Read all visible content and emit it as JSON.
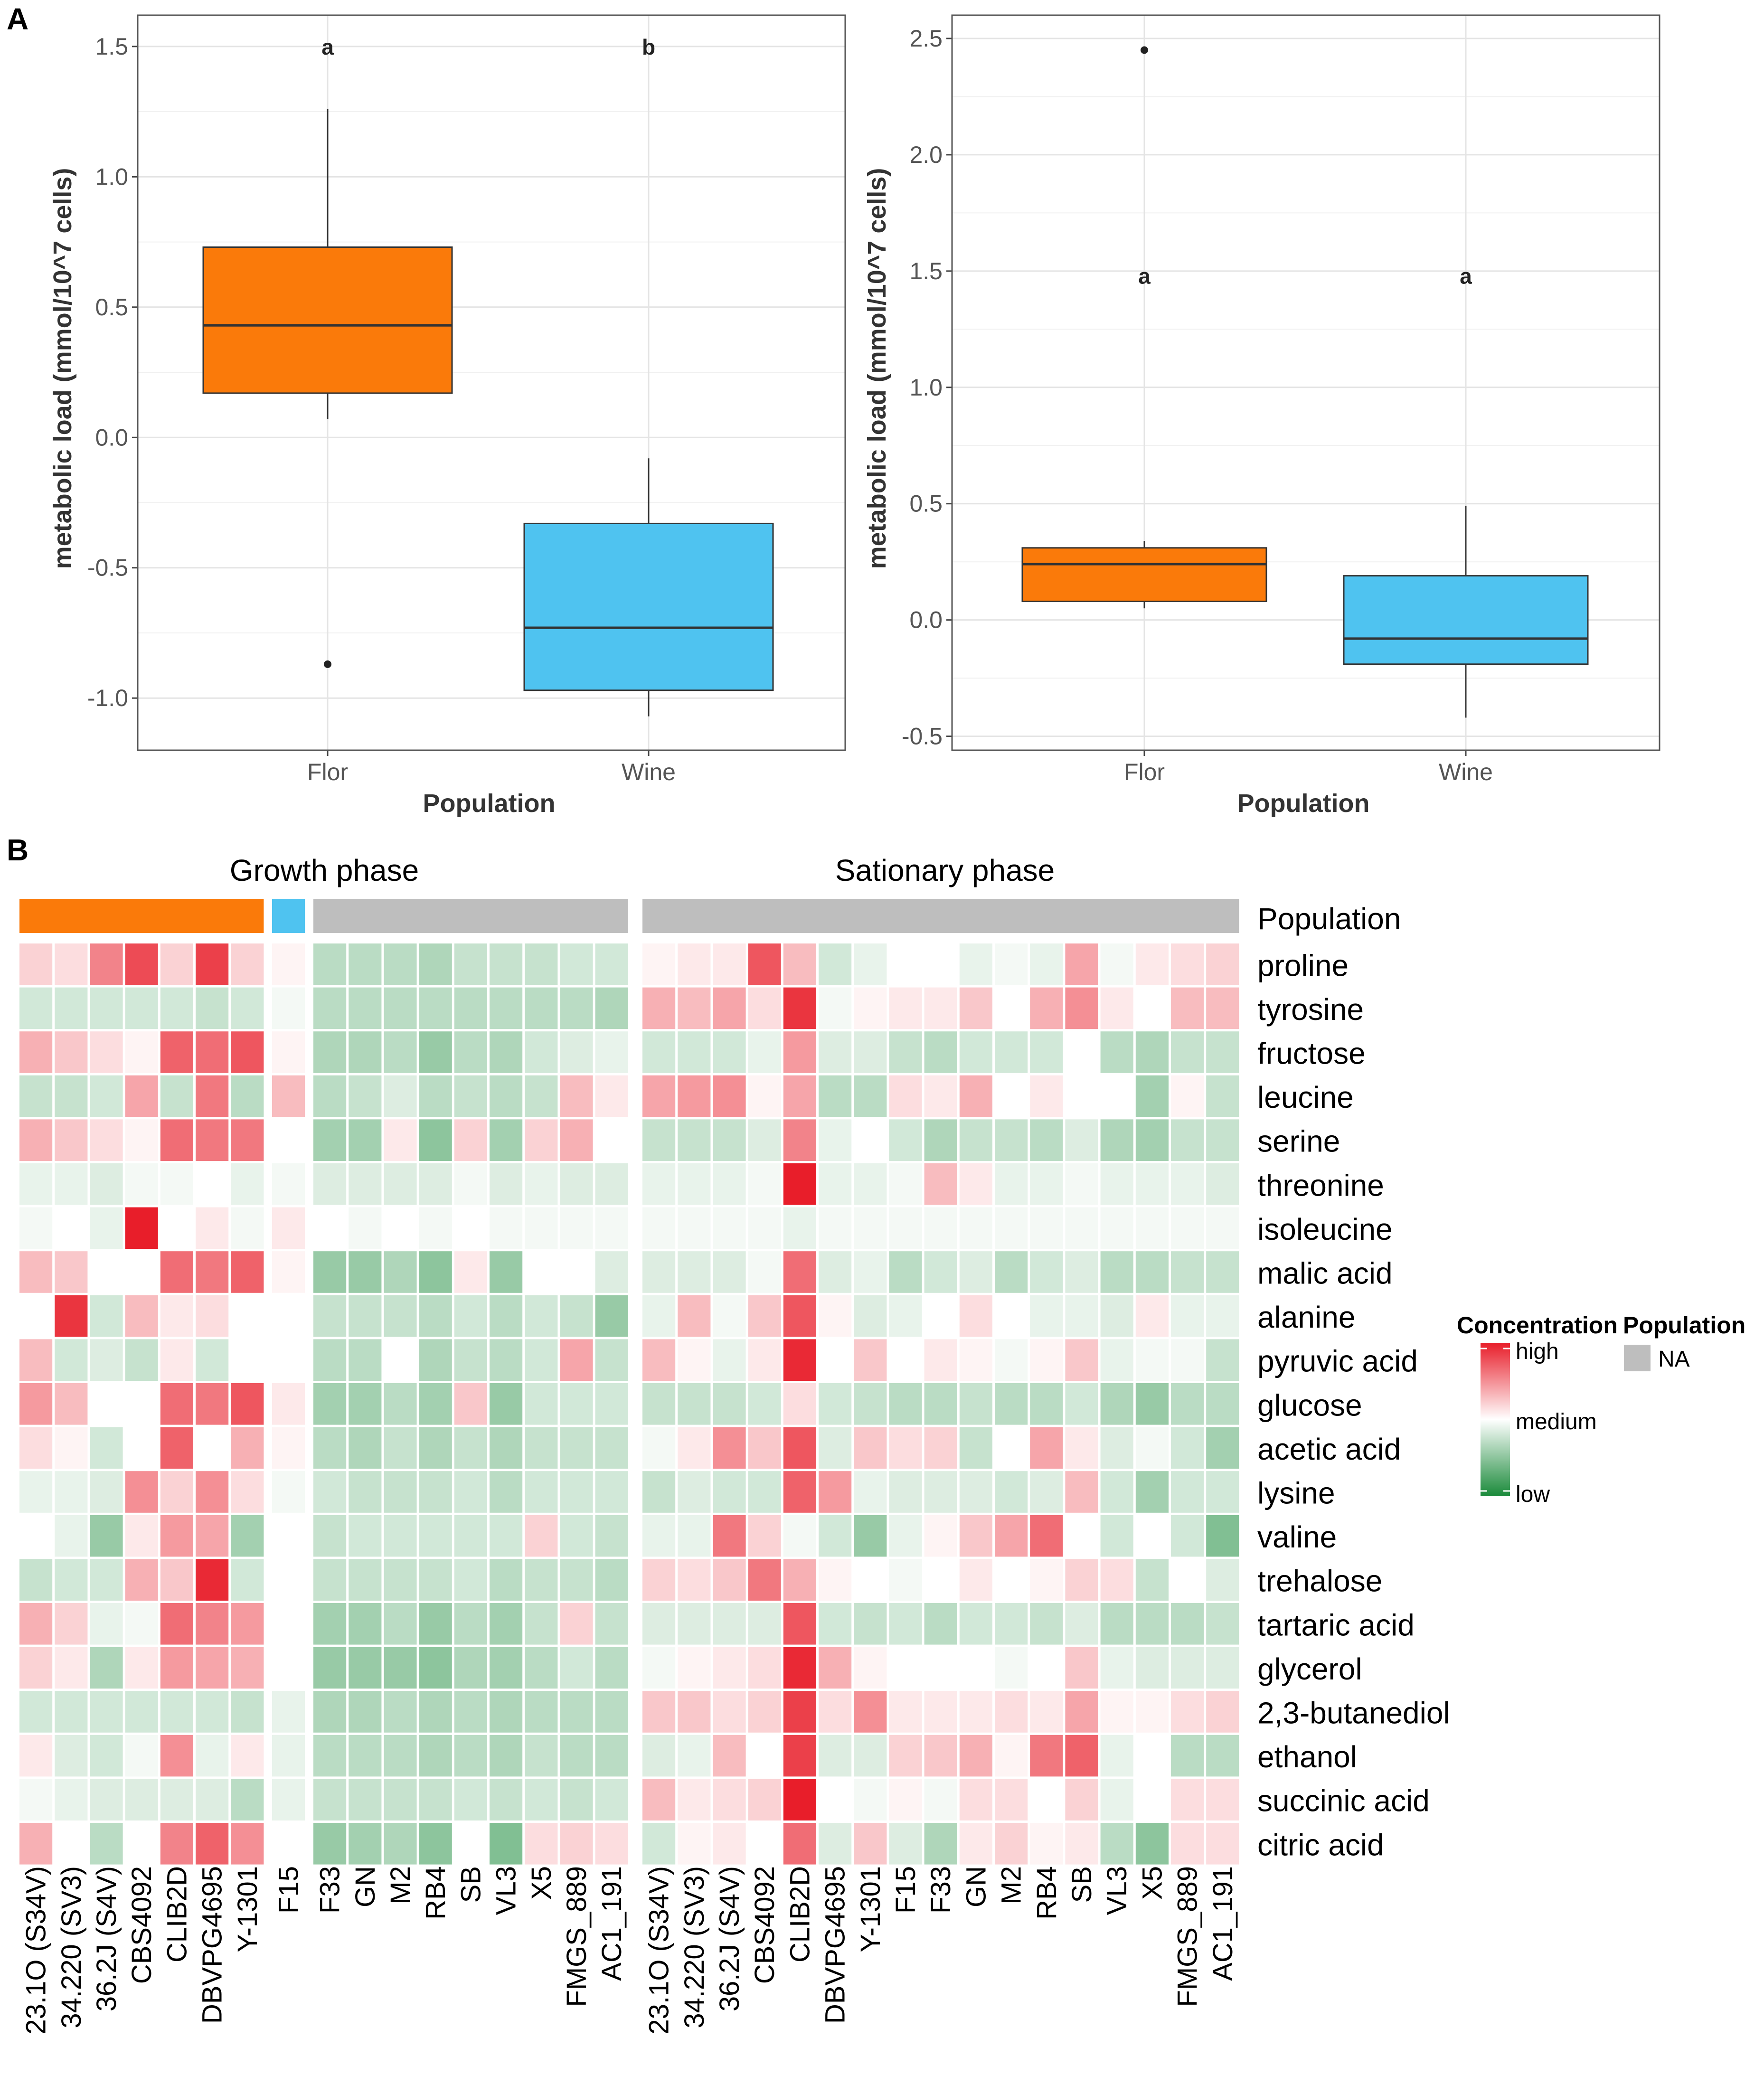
{
  "panels": {
    "a_label": "A",
    "b_label": "B"
  },
  "chart_data": [
    {
      "type": "box",
      "title": "",
      "xlabel": "Population",
      "ylabel": "metabolic load (mmol/10^7 cells)",
      "ylim": [
        -1.2,
        1.62
      ],
      "yticks": [
        -1.0,
        -0.5,
        0.0,
        0.5,
        1.0,
        1.5
      ],
      "ytick_labels": [
        "-1.0",
        "-0.5",
        "0.0",
        "0.5",
        "1.0",
        "1.5"
      ],
      "categories": [
        "Flor",
        "Wine"
      ],
      "boxes": [
        {
          "name": "Flor",
          "color": "#FA7A0A",
          "whisker_low": 0.07,
          "q1": 0.17,
          "median": 0.43,
          "q3": 0.73,
          "whisker_high": 1.26,
          "outliers": [
            -0.87
          ],
          "letter": "a",
          "letter_y": 1.5
        },
        {
          "name": "Wine",
          "color": "#4FC3F0",
          "whisker_low": -1.07,
          "q1": -0.97,
          "median": -0.73,
          "q3": -0.33,
          "whisker_high": -0.08,
          "outliers": [],
          "letter": "b",
          "letter_y": 1.5
        }
      ]
    },
    {
      "type": "box",
      "title": "",
      "xlabel": "Population",
      "ylabel": "metabolic load (mmol/10^7 cells)",
      "ylim": [
        -0.56,
        2.6
      ],
      "yticks": [
        -0.5,
        0.0,
        0.5,
        1.0,
        1.5,
        2.0,
        2.5
      ],
      "ytick_labels": [
        "-0.5",
        "0.0",
        "0.5",
        "1.0",
        "1.5",
        "2.0",
        "2.5"
      ],
      "categories": [
        "Flor",
        "Wine"
      ],
      "boxes": [
        {
          "name": "Flor",
          "color": "#FA7A0A",
          "whisker_low": 0.05,
          "q1": 0.08,
          "median": 0.24,
          "q3": 0.31,
          "whisker_high": 0.34,
          "outliers": [
            2.45
          ],
          "letter": "a",
          "letter_y": 1.48
        },
        {
          "name": "Wine",
          "color": "#4FC3F0",
          "whisker_low": -0.42,
          "q1": -0.19,
          "median": -0.08,
          "q3": 0.19,
          "whisker_high": 0.49,
          "outliers": [],
          "letter": "a",
          "letter_y": 1.48
        }
      ]
    },
    {
      "type": "heatmap",
      "title": "",
      "scale": "relative concentration, -2 (low, green) to +2 (high, red)",
      "rows": [
        "proline",
        "tyrosine",
        "fructose",
        "leucine",
        "serine",
        "threonine",
        "isoleucine",
        "malic acid",
        "alanine",
        "pyruvic acid",
        "glucose",
        "acetic acid",
        "lysine",
        "valine",
        "trehalose",
        "tartaric acid",
        "glycerol",
        "2,3-butanediol",
        "ethanol",
        "succinic acid",
        "citric acid"
      ],
      "growth_phase": {
        "title": "Growth phase",
        "columns": [
          "23.1O (S34V)",
          "34.220 (SV3)",
          "36.2J (S4V)",
          "CBS4092",
          "CLIB2D",
          "DBVPG4695",
          "Y-1301",
          "F15",
          "F33",
          "GN",
          "M2",
          "RB4",
          "SB",
          "VL3",
          "X5",
          "FMGS_889",
          "AC1_191"
        ],
        "population_bar": [
          {
            "group": "Flor",
            "span": 7,
            "color": "#FA7A0A"
          },
          {
            "group": "Wine",
            "span": 1,
            "color": "#4FC3F0"
          },
          {
            "group": "NA",
            "span": 9,
            "color": "#BEBEBE"
          }
        ],
        "values": [
          [
            0.4,
            0.3,
            1.1,
            1.6,
            0.4,
            1.7,
            0.4,
            0.1,
            -0.6,
            -0.6,
            -0.6,
            -0.7,
            -0.5,
            -0.5,
            -0.5,
            -0.4,
            -0.4
          ],
          [
            -0.4,
            -0.4,
            -0.4,
            -0.4,
            -0.4,
            -0.5,
            -0.4,
            -0.1,
            -0.6,
            -0.6,
            -0.6,
            -0.6,
            -0.6,
            -0.6,
            -0.6,
            -0.6,
            -0.7
          ],
          [
            0.7,
            0.5,
            0.3,
            0.1,
            1.4,
            1.3,
            1.5,
            0.1,
            -0.7,
            -0.7,
            -0.6,
            -0.9,
            -0.6,
            -0.7,
            -0.4,
            -0.3,
            -0.2
          ],
          [
            -0.5,
            -0.5,
            -0.4,
            0.8,
            -0.5,
            1.2,
            -0.6,
            0.6,
            -0.6,
            -0.5,
            -0.3,
            -0.6,
            -0.5,
            -0.6,
            -0.5,
            0.6,
            0.2
          ],
          [
            0.7,
            0.5,
            0.3,
            0.1,
            1.3,
            1.2,
            1.2,
            0.0,
            -0.8,
            -0.8,
            0.2,
            -1.0,
            0.4,
            -0.8,
            0.4,
            0.7,
            0.0
          ],
          [
            -0.2,
            -0.2,
            -0.3,
            -0.1,
            -0.1,
            0.0,
            -0.2,
            -0.1,
            -0.3,
            -0.3,
            -0.3,
            -0.3,
            -0.1,
            -0.3,
            -0.2,
            -0.3,
            -0.3
          ],
          [
            -0.1,
            0.0,
            -0.2,
            2.0,
            0.0,
            0.2,
            -0.1,
            0.2,
            0.0,
            -0.1,
            0.0,
            -0.1,
            0.0,
            -0.1,
            -0.1,
            -0.1,
            -0.1
          ],
          [
            0.6,
            0.5,
            0.0,
            0.0,
            1.3,
            1.2,
            1.4,
            0.1,
            -0.9,
            -0.9,
            -0.7,
            -1.0,
            0.2,
            -0.9,
            0.0,
            0.0,
            -0.3
          ],
          [
            0.0,
            1.8,
            -0.4,
            0.6,
            0.2,
            0.3,
            0.0,
            0.0,
            -0.5,
            -0.5,
            -0.5,
            -0.6,
            -0.4,
            -0.6,
            -0.4,
            -0.5,
            -0.9
          ],
          [
            0.6,
            -0.4,
            -0.3,
            -0.5,
            0.2,
            -0.4,
            0.0,
            0.0,
            -0.6,
            -0.6,
            0.0,
            -0.7,
            -0.5,
            -0.6,
            -0.4,
            0.8,
            -0.5
          ],
          [
            0.9,
            0.6,
            0.0,
            0.0,
            1.3,
            1.2,
            1.5,
            0.2,
            -0.8,
            -0.8,
            -0.6,
            -0.8,
            0.5,
            -0.9,
            -0.4,
            -0.4,
            -0.4
          ],
          [
            0.3,
            0.1,
            -0.4,
            0.0,
            1.4,
            0.0,
            0.7,
            0.1,
            -0.6,
            -0.7,
            -0.5,
            -0.7,
            -0.5,
            -0.7,
            -0.5,
            -0.5,
            -0.5
          ],
          [
            -0.2,
            -0.2,
            -0.3,
            1.0,
            0.4,
            1.0,
            0.3,
            -0.1,
            -0.4,
            -0.5,
            -0.5,
            -0.5,
            -0.4,
            -0.6,
            -0.4,
            -0.4,
            -0.4
          ],
          [
            0.0,
            -0.2,
            -0.9,
            0.2,
            0.9,
            0.8,
            -0.8,
            0.0,
            -0.5,
            -0.4,
            -0.4,
            -0.4,
            -0.4,
            -0.4,
            0.4,
            -0.4,
            -0.5
          ],
          [
            -0.5,
            -0.4,
            -0.4,
            0.7,
            0.5,
            1.9,
            -0.4,
            0.0,
            -0.5,
            -0.5,
            -0.5,
            -0.5,
            -0.4,
            -0.6,
            -0.5,
            -0.5,
            -0.6
          ],
          [
            0.7,
            0.4,
            -0.2,
            -0.1,
            1.3,
            1.1,
            0.9,
            0.0,
            -0.8,
            -0.8,
            -0.6,
            -0.9,
            -0.6,
            -0.8,
            -0.5,
            0.4,
            -0.5
          ],
          [
            0.4,
            0.2,
            -0.7,
            0.2,
            0.9,
            0.8,
            0.7,
            0.0,
            -0.9,
            -0.9,
            -0.9,
            -1.0,
            -0.7,
            -0.8,
            -0.6,
            -0.4,
            -0.6
          ],
          [
            -0.4,
            -0.4,
            -0.4,
            -0.4,
            -0.4,
            -0.4,
            -0.5,
            -0.2,
            -0.7,
            -0.7,
            -0.6,
            -0.7,
            -0.6,
            -0.7,
            -0.6,
            -0.6,
            -0.6
          ],
          [
            0.2,
            -0.3,
            -0.4,
            -0.1,
            1.0,
            -0.2,
            0.2,
            -0.2,
            -0.6,
            -0.6,
            -0.6,
            -0.7,
            -0.6,
            -0.7,
            -0.5,
            -0.6,
            -0.6
          ],
          [
            -0.1,
            -0.2,
            -0.3,
            -0.3,
            -0.3,
            -0.3,
            -0.6,
            -0.2,
            -0.5,
            -0.5,
            -0.5,
            -0.5,
            -0.4,
            -0.5,
            -0.4,
            -0.5,
            -0.4
          ],
          [
            0.7,
            0.0,
            -0.6,
            0.0,
            1.1,
            1.4,
            1.0,
            0.0,
            -0.9,
            -0.8,
            -0.7,
            -1.0,
            0.0,
            -1.1,
            0.3,
            0.4,
            0.3
          ]
        ]
      },
      "stationary_phase": {
        "title": "Sationary phase",
        "columns": [
          "23.1O (S34V)",
          "34.220 (SV3)",
          "36.2J (S4V)",
          "CBS4092",
          "CLIB2D",
          "DBVPG4695",
          "Y-1301",
          "F15",
          "F33",
          "GN",
          "M2",
          "RB4",
          "SB",
          "VL3",
          "X5",
          "FMGS_889",
          "AC1_191"
        ],
        "population_bar": [
          {
            "group": "NA",
            "span": 17,
            "color": "#BEBEBE"
          }
        ],
        "values": [
          [
            0.1,
            0.2,
            0.2,
            1.5,
            0.6,
            -0.4,
            -0.2,
            0.0,
            0.0,
            -0.2,
            -0.1,
            -0.2,
            0.8,
            -0.1,
            0.2,
            0.3,
            0.4
          ],
          [
            0.7,
            0.6,
            0.8,
            0.3,
            1.8,
            -0.1,
            0.1,
            0.2,
            0.2,
            0.5,
            0.0,
            0.7,
            1.0,
            0.2,
            0.0,
            0.6,
            0.6
          ],
          [
            -0.4,
            -0.4,
            -0.4,
            -0.2,
            0.9,
            -0.3,
            -0.3,
            -0.5,
            -0.6,
            -0.4,
            -0.4,
            -0.4,
            0.0,
            -0.6,
            -0.7,
            -0.5,
            -0.5
          ],
          [
            0.8,
            0.9,
            1.0,
            0.1,
            0.8,
            -0.6,
            -0.6,
            0.3,
            0.2,
            0.7,
            0.0,
            0.2,
            0.0,
            0.0,
            -0.8,
            0.1,
            -0.5
          ],
          [
            -0.5,
            -0.5,
            -0.5,
            -0.3,
            1.1,
            -0.2,
            0.0,
            -0.4,
            -0.7,
            -0.5,
            -0.5,
            -0.6,
            -0.3,
            -0.7,
            -0.8,
            -0.5,
            -0.5
          ],
          [
            -0.2,
            -0.2,
            -0.2,
            -0.1,
            2.0,
            -0.2,
            -0.2,
            -0.1,
            0.6,
            0.2,
            -0.2,
            -0.2,
            -0.1,
            -0.2,
            -0.2,
            -0.2,
            -0.3
          ],
          [
            -0.1,
            -0.1,
            -0.1,
            -0.1,
            -0.2,
            -0.1,
            -0.1,
            -0.1,
            -0.1,
            -0.1,
            -0.1,
            -0.1,
            -0.1,
            -0.1,
            -0.1,
            -0.1,
            -0.1
          ],
          [
            -0.3,
            -0.3,
            -0.3,
            -0.1,
            1.3,
            -0.3,
            -0.2,
            -0.6,
            -0.4,
            -0.3,
            -0.6,
            -0.4,
            -0.3,
            -0.6,
            -0.6,
            -0.5,
            -0.5
          ],
          [
            -0.2,
            0.6,
            -0.1,
            0.5,
            1.5,
            0.1,
            -0.3,
            -0.2,
            0.0,
            0.3,
            0.0,
            -0.2,
            -0.2,
            -0.3,
            0.2,
            -0.2,
            -0.2
          ],
          [
            0.6,
            0.1,
            -0.2,
            0.2,
            1.9,
            0.0,
            0.5,
            0.0,
            0.2,
            0.1,
            -0.1,
            0.1,
            0.5,
            -0.2,
            -0.1,
            -0.1,
            -0.5
          ],
          [
            -0.5,
            -0.5,
            -0.5,
            -0.4,
            0.3,
            -0.4,
            -0.5,
            -0.6,
            -0.6,
            -0.5,
            -0.6,
            -0.6,
            -0.4,
            -0.7,
            -0.9,
            -0.6,
            -0.6
          ],
          [
            -0.1,
            0.2,
            1.0,
            0.5,
            1.5,
            -0.3,
            0.5,
            0.3,
            0.4,
            -0.5,
            0.0,
            0.8,
            0.2,
            -0.3,
            -0.1,
            -0.4,
            -0.8
          ],
          [
            -0.5,
            -0.3,
            -0.4,
            -0.4,
            1.4,
            0.9,
            -0.2,
            -0.3,
            -0.3,
            -0.3,
            -0.4,
            -0.3,
            0.6,
            -0.4,
            -0.8,
            -0.4,
            -0.4
          ],
          [
            -0.2,
            -0.2,
            1.2,
            0.4,
            -0.1,
            -0.4,
            -0.9,
            -0.2,
            0.1,
            0.5,
            0.8,
            1.3,
            0.0,
            -0.4,
            0.0,
            -0.4,
            -1.1
          ],
          [
            0.4,
            0.3,
            0.5,
            1.2,
            0.7,
            0.1,
            0.0,
            -0.1,
            0.0,
            0.2,
            0.0,
            0.1,
            0.4,
            0.3,
            -0.5,
            0.0,
            -0.3
          ],
          [
            -0.3,
            -0.3,
            -0.3,
            -0.3,
            1.5,
            -0.4,
            -0.5,
            -0.4,
            -0.6,
            -0.4,
            -0.4,
            -0.5,
            -0.3,
            -0.6,
            -0.6,
            -0.6,
            -0.5
          ],
          [
            -0.1,
            0.1,
            0.2,
            0.3,
            1.9,
            0.7,
            0.1,
            0.0,
            0.0,
            0.0,
            -0.1,
            0.0,
            0.5,
            -0.2,
            -0.3,
            -0.3,
            -0.3
          ],
          [
            0.5,
            0.5,
            0.3,
            0.4,
            1.7,
            0.3,
            1.0,
            0.2,
            0.2,
            0.2,
            0.3,
            0.2,
            0.8,
            0.1,
            0.1,
            0.3,
            0.4
          ],
          [
            -0.3,
            -0.2,
            0.6,
            0.0,
            1.7,
            -0.3,
            -0.3,
            0.4,
            0.5,
            0.7,
            0.1,
            1.2,
            1.4,
            -0.2,
            0.0,
            -0.6,
            -0.6
          ],
          [
            0.6,
            0.2,
            0.3,
            0.4,
            2.0,
            0.0,
            -0.1,
            0.1,
            -0.1,
            0.3,
            0.3,
            0.0,
            0.4,
            -0.2,
            0.0,
            0.3,
            0.3
          ],
          [
            -0.4,
            0.1,
            0.2,
            0.0,
            1.3,
            -0.3,
            0.5,
            -0.3,
            -0.7,
            0.2,
            0.4,
            0.1,
            0.2,
            -0.6,
            -1.0,
            0.3,
            0.3
          ]
        ]
      },
      "population_label": "Population",
      "legend": {
        "concentration_title": "Concentration",
        "high": "high",
        "medium": "medium",
        "low": "low",
        "population_title": "Population",
        "na_label": "NA",
        "na_color": "#BEBEBE"
      },
      "colors": {
        "low": "#1A8A3A",
        "mid": "#FFFFFF",
        "high": "#E81E2A"
      }
    }
  ]
}
